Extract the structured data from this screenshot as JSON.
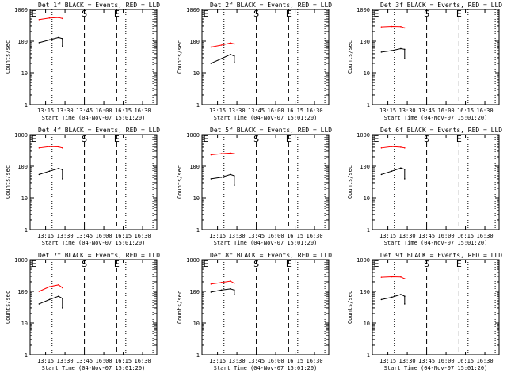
{
  "colors": {
    "events": "#000000",
    "lld": "#ff0000",
    "background": "#ffffff"
  },
  "shared": {
    "xlabel": "Start Time (04-Nov-07 15:01:20)",
    "ylabel": "Counts/sec",
    "xticks": [
      "13:15",
      "13:30",
      "13:45",
      "16:00",
      "16:15",
      "16:30"
    ],
    "yticks": [
      "1",
      "10",
      "100",
      "1000"
    ],
    "ylim": [
      1,
      1000
    ],
    "yscale": "log",
    "dotted_lines_at": [
      "13:20",
      "16:17",
      "16:38"
    ],
    "dashed_lines_at": [
      {
        "x": "13:45",
        "label": "S"
      },
      {
        "x": "16:10",
        "label": "E"
      }
    ]
  },
  "chart_data": [
    {
      "type": "line",
      "title": "Det 1f BLACK = Events, RED = LLD",
      "series": [
        {
          "name": "Events",
          "color": "#000000",
          "x": [
            "13:10",
            "13:18",
            "13:25",
            "13:28",
            "13:28"
          ],
          "values": [
            90,
            110,
            130,
            120,
            70
          ]
        },
        {
          "name": "LLD",
          "color": "#ff0000",
          "x": [
            "13:10",
            "13:18",
            "13:25",
            "13:28"
          ],
          "values": [
            480,
            540,
            560,
            520
          ]
        }
      ]
    },
    {
      "type": "line",
      "title": "Det 2f BLACK = Events, RED = LLD",
      "series": [
        {
          "name": "Events",
          "color": "#000000",
          "x": [
            "13:10",
            "13:18",
            "13:25",
            "13:28",
            "13:28"
          ],
          "values": [
            20,
            28,
            38,
            34,
            22
          ]
        },
        {
          "name": "LLD",
          "color": "#ff0000",
          "x": [
            "13:10",
            "13:18",
            "13:25",
            "13:28"
          ],
          "values": [
            65,
            75,
            88,
            82
          ]
        }
      ]
    },
    {
      "type": "line",
      "title": "Det 3f BLACK = Events, RED = LLD",
      "series": [
        {
          "name": "Events",
          "color": "#000000",
          "x": [
            "13:10",
            "13:18",
            "13:25",
            "13:28",
            "13:28"
          ],
          "values": [
            45,
            50,
            58,
            55,
            28
          ]
        },
        {
          "name": "LLD",
          "color": "#ff0000",
          "x": [
            "13:10",
            "13:18",
            "13:25",
            "13:28"
          ],
          "values": [
            280,
            290,
            285,
            260
          ]
        }
      ]
    },
    {
      "type": "line",
      "title": "Det 4f BLACK = Events, RED = LLD",
      "series": [
        {
          "name": "Events",
          "color": "#000000",
          "x": [
            "13:10",
            "13:18",
            "13:25",
            "13:28",
            "13:28"
          ],
          "values": [
            55,
            70,
            85,
            78,
            40
          ]
        },
        {
          "name": "LLD",
          "color": "#ff0000",
          "x": [
            "13:10",
            "13:18",
            "13:25",
            "13:28"
          ],
          "values": [
            380,
            420,
            410,
            380
          ]
        }
      ]
    },
    {
      "type": "line",
      "title": "Det 5f BLACK = Events, RED = LLD",
      "series": [
        {
          "name": "Events",
          "color": "#000000",
          "x": [
            "13:10",
            "13:18",
            "13:25",
            "13:28",
            "13:28"
          ],
          "values": [
            40,
            45,
            55,
            50,
            25
          ]
        },
        {
          "name": "LLD",
          "color": "#ff0000",
          "x": [
            "13:10",
            "13:18",
            "13:25",
            "13:28"
          ],
          "values": [
            230,
            250,
            260,
            250
          ]
        }
      ]
    },
    {
      "type": "line",
      "title": "Det 6f BLACK = Events, RED = LLD",
      "series": [
        {
          "name": "Events",
          "color": "#000000",
          "x": [
            "13:10",
            "13:18",
            "13:25",
            "13:28",
            "13:28"
          ],
          "values": [
            55,
            70,
            88,
            80,
            40
          ]
        },
        {
          "name": "LLD",
          "color": "#ff0000",
          "x": [
            "13:10",
            "13:18",
            "13:25",
            "13:28"
          ],
          "values": [
            380,
            420,
            400,
            380
          ]
        }
      ]
    },
    {
      "type": "line",
      "title": "Det 7f BLACK = Events, RED = LLD",
      "series": [
        {
          "name": "Events",
          "color": "#000000",
          "x": [
            "13:10",
            "13:18",
            "13:25",
            "13:28",
            "13:28"
          ],
          "values": [
            40,
            55,
            70,
            60,
            30
          ]
        },
        {
          "name": "LLD",
          "color": "#ff0000",
          "x": [
            "13:10",
            "13:18",
            "13:25",
            "13:28"
          ],
          "values": [
            100,
            140,
            160,
            130
          ]
        }
      ]
    },
    {
      "type": "line",
      "title": "Det 8f BLACK = Events, RED = LLD",
      "series": [
        {
          "name": "Events",
          "color": "#000000",
          "x": [
            "13:10",
            "13:18",
            "13:25",
            "13:28",
            "13:28"
          ],
          "values": [
            95,
            110,
            120,
            110,
            80
          ]
        },
        {
          "name": "LLD",
          "color": "#ff0000",
          "x": [
            "13:10",
            "13:18",
            "13:25",
            "13:28"
          ],
          "values": [
            170,
            190,
            210,
            180
          ]
        }
      ]
    },
    {
      "type": "line",
      "title": "Det 9f BLACK = Events, RED = LLD",
      "series": [
        {
          "name": "Events",
          "color": "#000000",
          "x": [
            "13:10",
            "13:18",
            "13:25",
            "13:28",
            "13:28"
          ],
          "values": [
            55,
            65,
            80,
            70,
            40
          ]
        },
        {
          "name": "LLD",
          "color": "#ff0000",
          "x": [
            "13:10",
            "13:18",
            "13:25",
            "13:28"
          ],
          "values": [
            280,
            290,
            285,
            250
          ]
        }
      ]
    }
  ]
}
